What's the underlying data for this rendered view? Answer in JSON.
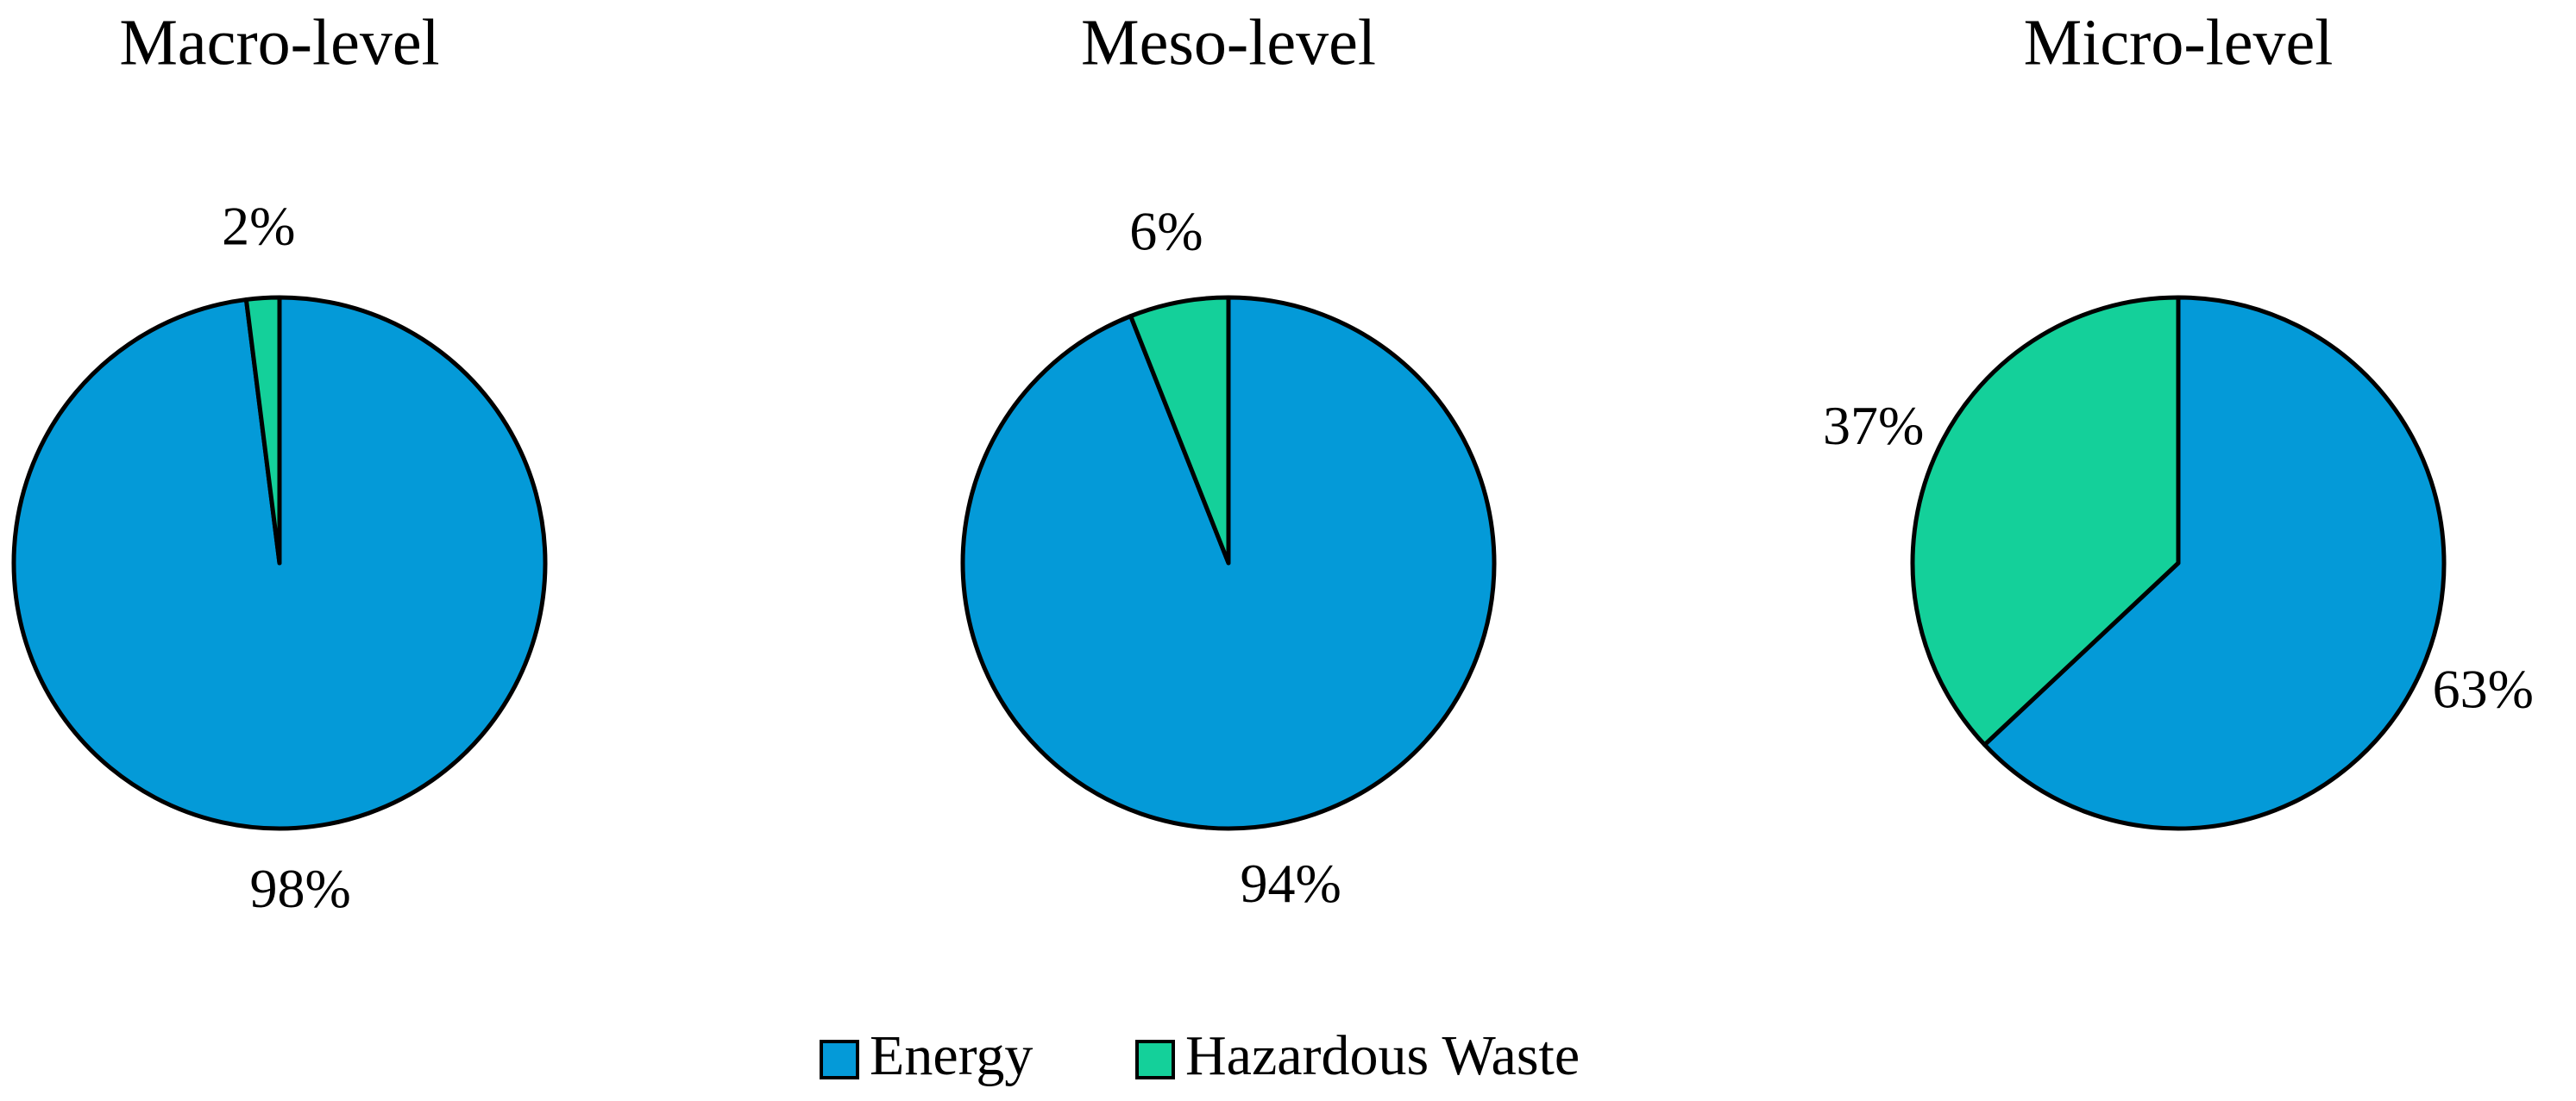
{
  "chart_data": [
    {
      "type": "pie",
      "title": "Macro-level",
      "categories": [
        "Energy",
        "Hazardous Waste"
      ],
      "values": [
        98,
        2
      ],
      "value_labels": [
        "98%",
        "2%"
      ],
      "colors": [
        "#049ad8",
        "#14d09a"
      ]
    },
    {
      "type": "pie",
      "title": "Meso-level",
      "categories": [
        "Energy",
        "Hazardous Waste"
      ],
      "values": [
        94,
        6
      ],
      "value_labels": [
        "94%",
        "6%"
      ],
      "colors": [
        "#049ad8",
        "#14d09a"
      ]
    },
    {
      "type": "pie",
      "title": "Micro-level",
      "categories": [
        "Energy",
        "Hazardous Waste"
      ],
      "values": [
        63,
        37
      ],
      "value_labels": [
        "63%",
        "37%"
      ],
      "colors": [
        "#049ad8",
        "#14d09a"
      ]
    }
  ]
}
